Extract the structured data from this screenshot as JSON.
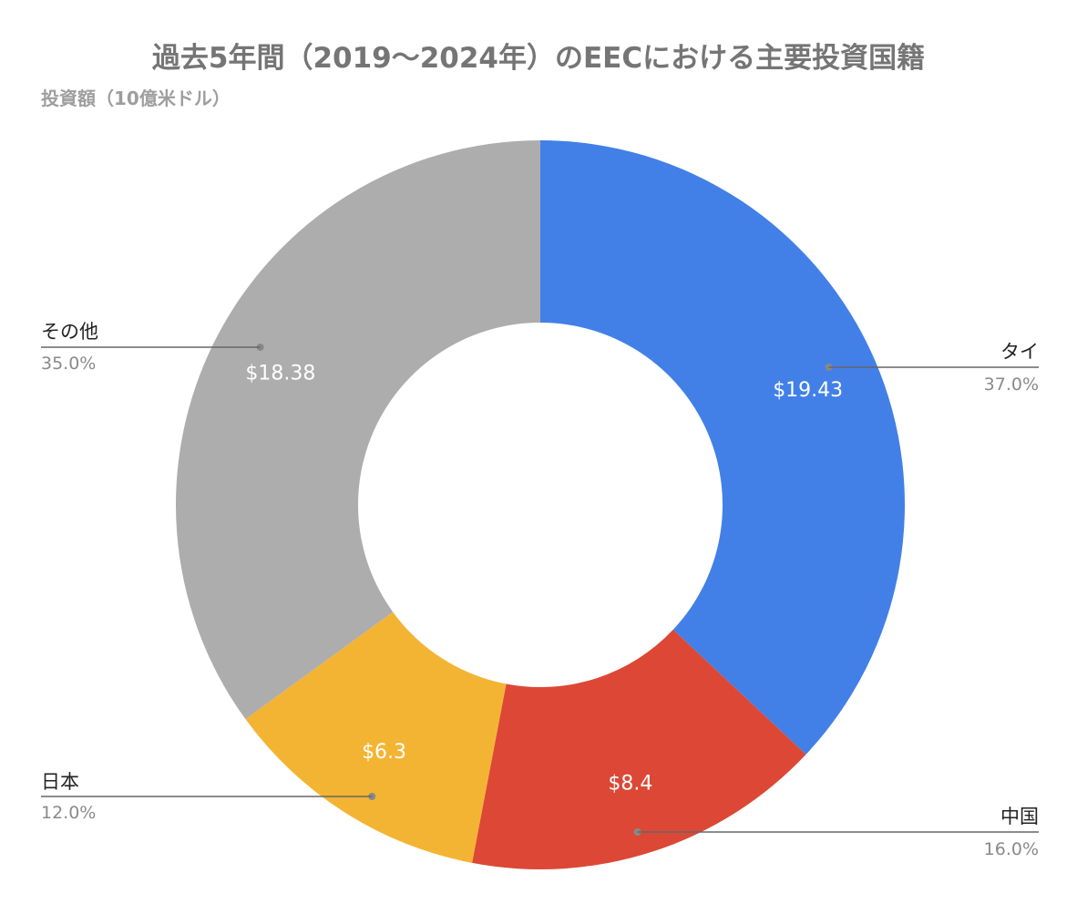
{
  "chart_data": {
    "type": "pie",
    "title": "過去5年間（2019〜2024年）のEECにおける主要投資国籍",
    "subtitle": "投資額（10億米ドル）",
    "donut": true,
    "slices": [
      {
        "label": "タイ",
        "value": 19.43,
        "value_label": "$19.43",
        "percent": "37.0%",
        "color": "#4280e8"
      },
      {
        "label": "中国",
        "value": 8.4,
        "value_label": "$8.4",
        "percent": "16.0%",
        "color": "#dc4835"
      },
      {
        "label": "日本",
        "value": 6.3,
        "value_label": "$6.3",
        "percent": "12.0%",
        "color": "#f4b433"
      },
      {
        "label": "その他",
        "value": 18.38,
        "value_label": "$18.38",
        "percent": "35.0%",
        "color": "#adadad"
      }
    ]
  }
}
